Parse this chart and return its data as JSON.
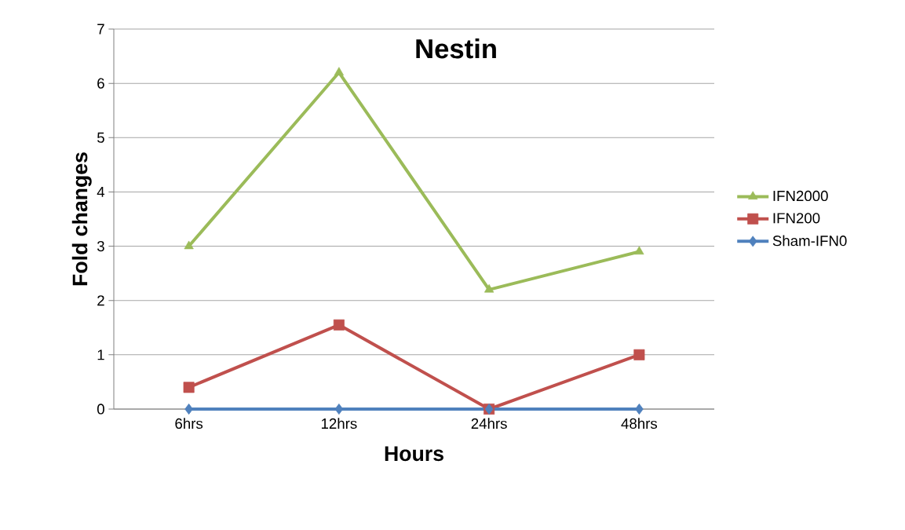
{
  "chart_data": {
    "type": "line",
    "title": "Nestin",
    "xlabel": "Hours",
    "ylabel": "Fold changes",
    "categories": [
      "6hrs",
      "12hrs",
      "24hrs",
      "48hrs"
    ],
    "series": [
      {
        "name": "IFN2000",
        "color": "#9bbb59",
        "marker": "triangle",
        "values": [
          3.0,
          6.2,
          2.2,
          2.9
        ]
      },
      {
        "name": "IFN200",
        "color": "#c0504d",
        "marker": "square",
        "values": [
          0.4,
          1.55,
          0.0,
          1.0
        ]
      },
      {
        "name": "Sham-IFN0",
        "color": "#4f81bd",
        "marker": "diamond",
        "values": [
          0,
          0,
          0,
          0
        ]
      }
    ],
    "ylim": [
      0,
      7
    ],
    "yticks": [
      0,
      1,
      2,
      3,
      4,
      5,
      6,
      7
    ],
    "grid": "y",
    "legend": "right",
    "line_style": "solid"
  }
}
